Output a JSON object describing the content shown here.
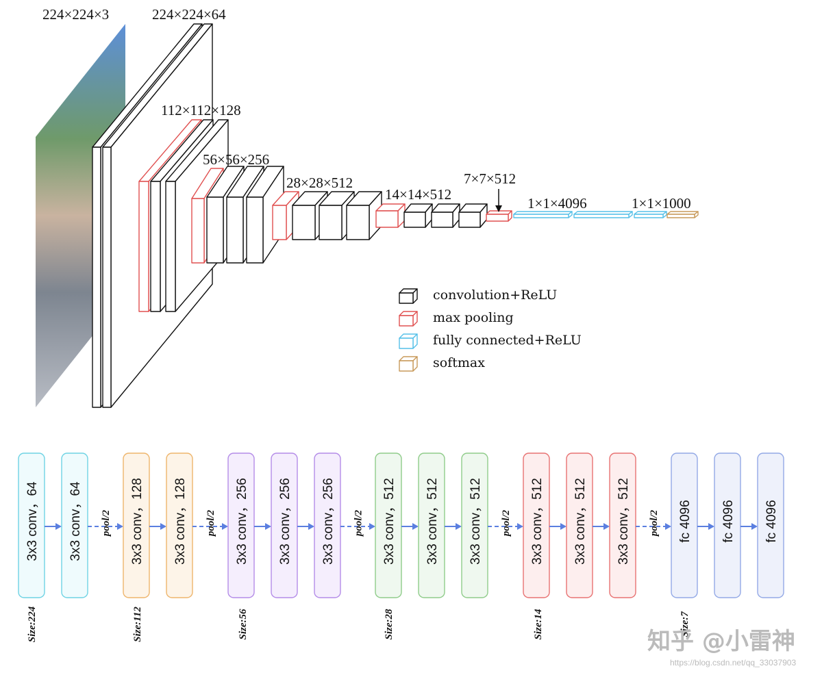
{
  "top_labels": {
    "input": "224×224×3",
    "block1": "224×224×64",
    "block2": "112×112×128",
    "block3": "56×56×256",
    "block4": "28×28×512",
    "block5": "14×14×512",
    "pool5": "7×7×512",
    "fc": "1×1×4096",
    "softmax": "1×1×1000"
  },
  "legend": [
    {
      "label": "convolution+ReLU",
      "color": "#111111"
    },
    {
      "label": "max pooling",
      "color": "#e05050"
    },
    {
      "label": "fully connected+ReLU",
      "color": "#55c0e8"
    },
    {
      "label": "softmax",
      "color": "#c89a5a"
    }
  ],
  "bottom_blocks": [
    {
      "label": "3x3 conv，64",
      "group": "cyan"
    },
    {
      "label": "3x3 conv，64",
      "group": "cyan"
    },
    {
      "label": "3x3 conv，128",
      "group": "orange"
    },
    {
      "label": "3x3 conv，128",
      "group": "orange"
    },
    {
      "label": "3x3 conv，256",
      "group": "purple"
    },
    {
      "label": "3x3 conv，256",
      "group": "purple"
    },
    {
      "label": "3x3 conv，256",
      "group": "purple"
    },
    {
      "label": "3x3 conv，512",
      "group": "green"
    },
    {
      "label": "3x3 conv，512",
      "group": "green"
    },
    {
      "label": "3x3 conv，512",
      "group": "green"
    },
    {
      "label": "3x3 conv，512",
      "group": "red"
    },
    {
      "label": "3x3 conv，512",
      "group": "red"
    },
    {
      "label": "3x3 conv，512",
      "group": "red"
    },
    {
      "label": "fc 4096",
      "group": "blue"
    },
    {
      "label": "fc 4096",
      "group": "blue"
    },
    {
      "label": "fc 4096",
      "group": "blue"
    }
  ],
  "group_colors": {
    "cyan": {
      "stroke": "#6fd3e4",
      "fill": "#effbfd"
    },
    "orange": {
      "stroke": "#eeb56c",
      "fill": "#fdf4e8"
    },
    "purple": {
      "stroke": "#b48ce8",
      "fill": "#f5eefd"
    },
    "green": {
      "stroke": "#8fcc8a",
      "fill": "#eff8ef"
    },
    "red": {
      "stroke": "#e87272",
      "fill": "#fdeeee"
    },
    "blue": {
      "stroke": "#93a9e6",
      "fill": "#eef1fb"
    }
  },
  "pool_label": "pool/2",
  "size_labels": [
    "Size:224",
    "Size:112",
    "Size:56",
    "Size:28",
    "Size:14",
    "Size:7"
  ],
  "arrow_color": "#5b7fe0",
  "watermark": {
    "text": "知乎 @小雷神",
    "url": "https://blog.csdn.net/qq_33037903"
  }
}
